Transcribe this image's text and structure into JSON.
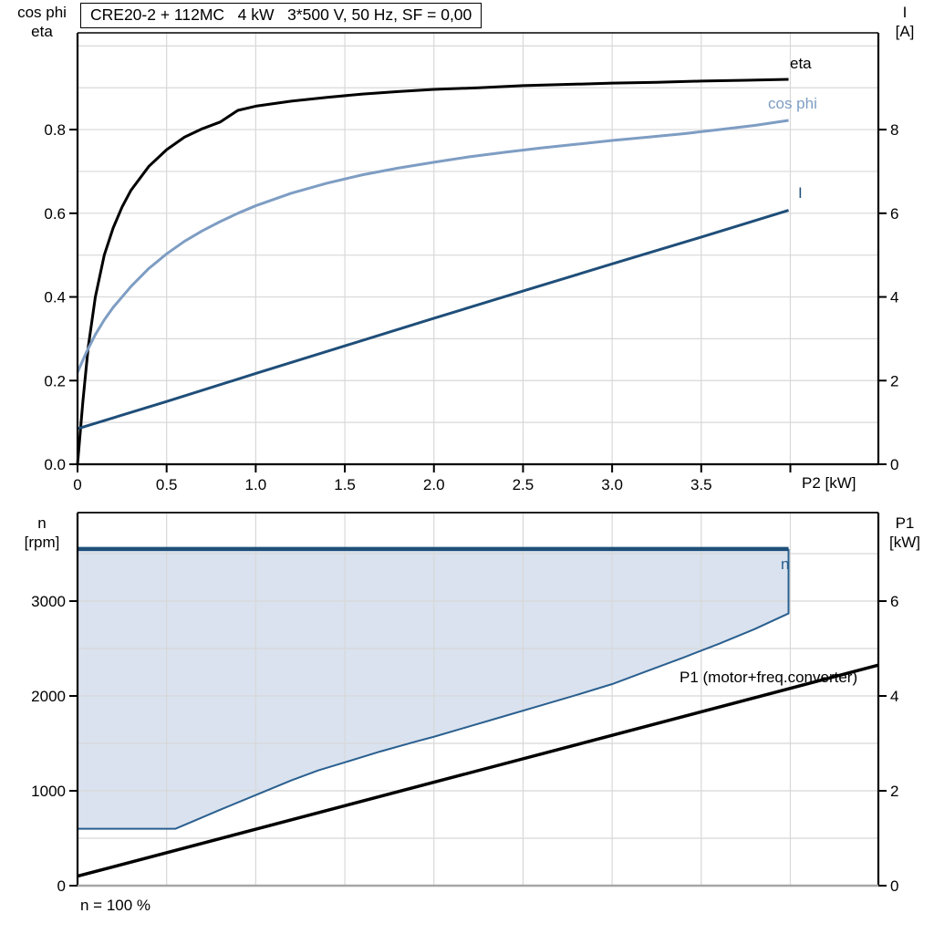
{
  "title_box": "CRE20-2 + 112MC   4 kW   3*500 V, 50 Hz, SF = 0,00",
  "footnote": "n = 100 %",
  "header": {
    "top_left": [
      "cos phi",
      "eta"
    ],
    "top_right": [
      "I",
      "[A]"
    ],
    "bottom_left": [
      "n",
      "[rpm]"
    ],
    "bottom_right": [
      "P1",
      "[kW]"
    ]
  },
  "curve_labels": {
    "eta": "eta",
    "cos_phi": "cos phi",
    "current": "I",
    "speed": "n",
    "p1": "P1 (motor+freq.converter)"
  },
  "colors": {
    "eta": "#000000",
    "cos_phi": "#7E9DC3",
    "current": "#1F4E79",
    "speed_line": "#1F4E79",
    "region_fill": "#D9E2EE",
    "region_stroke": "#2A5F8F",
    "p1_line": "#000000",
    "grid": "#D8D8D8",
    "axis": "#000000",
    "bottom_axis_gray": "#A6A6A6"
  },
  "chart_data": [
    {
      "type": "line",
      "name": "p2-performance-panel",
      "title": "CRE20-2 + 112MC   4 kW   3*500 V, 50 Hz, SF = 0,00",
      "xlabel": "P2 [kW]",
      "left_axis_label": "cos phi / eta",
      "right_axis_label": "I [A]",
      "xlim": [
        0,
        4.494
      ],
      "left_ylim": [
        0,
        1.0313
      ],
      "right_ylim": [
        0,
        10.313
      ],
      "xgrid": [
        0.5,
        1.0,
        1.5,
        2.0,
        2.5,
        3.0,
        3.5,
        4.0
      ],
      "ygrid_left": [
        0.1,
        0.2,
        0.3,
        0.4,
        0.5,
        0.6,
        0.7,
        0.8,
        0.9,
        1.0
      ],
      "x_ticks": {
        "values": [
          0,
          0.5,
          1.0,
          1.5,
          2.0,
          2.5,
          3.0,
          3.5
        ],
        "labels": [
          "0",
          "0.5",
          "1.0",
          "1.5",
          "2.0",
          "2.5",
          "3.0",
          "3.5"
        ],
        "extra_tick_values": [
          4.0
        ]
      },
      "left_ticks": {
        "values": [
          0,
          0.2,
          0.4,
          0.6,
          0.8
        ],
        "labels": [
          "0.0",
          "0.2",
          "0.4",
          "0.6",
          "0.8"
        ]
      },
      "right_ticks": {
        "values": [
          0,
          2,
          4,
          6,
          8
        ],
        "labels": [
          "0",
          "2",
          "4",
          "6",
          "8"
        ]
      },
      "series": [
        {
          "name": "eta",
          "axis": "left",
          "color": "#000000",
          "width": 3,
          "points": [
            [
              0,
              0
            ],
            [
              0.03,
              0.15
            ],
            [
              0.06,
              0.28
            ],
            [
              0.1,
              0.4
            ],
            [
              0.15,
              0.5
            ],
            [
              0.2,
              0.565
            ],
            [
              0.25,
              0.615
            ],
            [
              0.3,
              0.655
            ],
            [
              0.4,
              0.712
            ],
            [
              0.5,
              0.752
            ],
            [
              0.6,
              0.782
            ],
            [
              0.7,
              0.802
            ],
            [
              0.8,
              0.818
            ],
            [
              0.9,
              0.846
            ],
            [
              1.0,
              0.856
            ],
            [
              1.2,
              0.868
            ],
            [
              1.4,
              0.877
            ],
            [
              1.6,
              0.885
            ],
            [
              1.8,
              0.891
            ],
            [
              2.0,
              0.896
            ],
            [
              2.25,
              0.9
            ],
            [
              2.5,
              0.905
            ],
            [
              2.75,
              0.908
            ],
            [
              3.0,
              0.911
            ],
            [
              3.25,
              0.913
            ],
            [
              3.5,
              0.916
            ],
            [
              3.75,
              0.918
            ],
            [
              3.99,
              0.92
            ]
          ]
        },
        {
          "name": "cos phi",
          "axis": "left",
          "color": "#7E9DC3",
          "width": 3,
          "points": [
            [
              0,
              0.22
            ],
            [
              0.05,
              0.268
            ],
            [
              0.1,
              0.31
            ],
            [
              0.15,
              0.345
            ],
            [
              0.2,
              0.375
            ],
            [
              0.25,
              0.4
            ],
            [
              0.3,
              0.425
            ],
            [
              0.4,
              0.468
            ],
            [
              0.5,
              0.503
            ],
            [
              0.6,
              0.533
            ],
            [
              0.7,
              0.558
            ],
            [
              0.8,
              0.58
            ],
            [
              0.9,
              0.6
            ],
            [
              1.0,
              0.618
            ],
            [
              1.2,
              0.648
            ],
            [
              1.4,
              0.672
            ],
            [
              1.6,
              0.692
            ],
            [
              1.8,
              0.708
            ],
            [
              2.0,
              0.722
            ],
            [
              2.2,
              0.735
            ],
            [
              2.4,
              0.746
            ],
            [
              2.6,
              0.756
            ],
            [
              2.8,
              0.765
            ],
            [
              3.0,
              0.774
            ],
            [
              3.2,
              0.782
            ],
            [
              3.4,
              0.79
            ],
            [
              3.6,
              0.8
            ],
            [
              3.8,
              0.81
            ],
            [
              3.99,
              0.822
            ]
          ]
        },
        {
          "name": "I",
          "axis": "right",
          "color": "#1F4E79",
          "width": 3,
          "points": [
            [
              0,
              0.85
            ],
            [
              0.5,
              1.5
            ],
            [
              1.0,
              2.17
            ],
            [
              1.5,
              2.83
            ],
            [
              2.0,
              3.49
            ],
            [
              2.5,
              4.14
            ],
            [
              3.0,
              4.79
            ],
            [
              3.5,
              5.43
            ],
            [
              3.99,
              6.07
            ]
          ]
        }
      ]
    },
    {
      "type": "line",
      "name": "speed-power-panel",
      "xlabel": "",
      "left_axis_label": "n [rpm]",
      "right_axis_label": "P1 [kW]",
      "xlim": [
        0,
        4.494
      ],
      "left_ylim": [
        0,
        3933
      ],
      "right_ylim": [
        0,
        7.866
      ],
      "xgrid": [
        0.5,
        1.0,
        1.5,
        2.0,
        2.5,
        3.0,
        3.5,
        4.0
      ],
      "ygrid_left": [
        500,
        1000,
        1500,
        2000,
        2500,
        3000,
        3500
      ],
      "left_ticks": {
        "values": [
          0,
          1000,
          2000,
          3000
        ],
        "labels": [
          "0",
          "1000",
          "2000",
          "3000"
        ]
      },
      "right_ticks": {
        "values": [
          0,
          2,
          4,
          6
        ],
        "labels": [
          "0",
          "2",
          "4",
          "6"
        ]
      },
      "region": {
        "name": "operating-range",
        "fill": "#D9E2EE",
        "stroke": "#2A5F8F",
        "stroke_width": 2,
        "top_value": 3550,
        "points": [
          [
            0,
            600
          ],
          [
            0.55,
            600
          ],
          [
            0.65,
            680
          ],
          [
            0.8,
            800
          ],
          [
            1.0,
            955
          ],
          [
            1.2,
            1110
          ],
          [
            1.35,
            1215
          ],
          [
            1.5,
            1300
          ],
          [
            1.7,
            1415
          ],
          [
            1.9,
            1520
          ],
          [
            2.0,
            1570
          ],
          [
            2.2,
            1680
          ],
          [
            2.4,
            1790
          ],
          [
            2.6,
            1900
          ],
          [
            2.8,
            2010
          ],
          [
            3.0,
            2125
          ],
          [
            3.2,
            2265
          ],
          [
            3.4,
            2405
          ],
          [
            3.6,
            2550
          ],
          [
            3.8,
            2705
          ],
          [
            3.99,
            2870
          ]
        ]
      },
      "series": [
        {
          "name": "n",
          "axis": "left",
          "color": "#1F4E79",
          "width": 4.5,
          "points": [
            [
              0,
              3550
            ],
            [
              3.99,
              3550
            ]
          ]
        },
        {
          "name": "P1 (motor+freq.converter)",
          "axis": "right",
          "color": "#000000",
          "width": 3.5,
          "points": [
            [
              0,
              0.2
            ],
            [
              4.494,
              4.65
            ]
          ]
        }
      ]
    }
  ]
}
